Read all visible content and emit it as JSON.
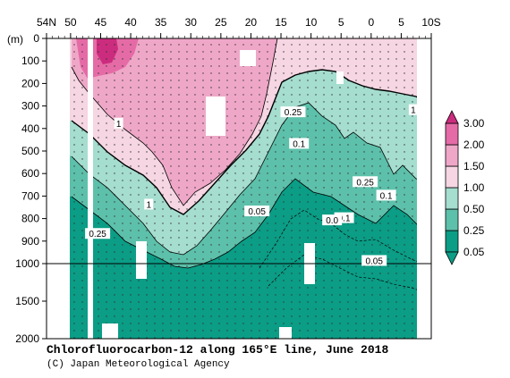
{
  "chart_data": {
    "type": "heatmap",
    "title": "Chlorofluorocarbon-12 along 165°E line, June 2018",
    "credit": "(C) Japan Meteorological Agency",
    "depth_unit": "(m)",
    "x_ticks": [
      "54N",
      "50",
      "45",
      "40",
      "35",
      "30",
      "25",
      "20",
      "15",
      "10",
      "5",
      "0",
      "5",
      "10S"
    ],
    "y_ticks_upper": [
      "0",
      "100",
      "200",
      "300",
      "400",
      "500",
      "600",
      "700",
      "800",
      "900",
      "1000"
    ],
    "y_ticks_lower": [
      "1500",
      "2000"
    ],
    "legend": {
      "levels": [
        "0.05",
        "0.25",
        "0.50",
        "1.00",
        "1.50",
        "2.00",
        "3.00"
      ],
      "colors": [
        "#0b9d86",
        "#5dc0aa",
        "#a5ddcf",
        "#f5d6e2",
        "#efa7c8",
        "#e56ba6",
        "#cc2c7e"
      ]
    },
    "contour_labels": [
      {
        "text": "1",
        "lat": 42,
        "depth": 380
      },
      {
        "text": "1",
        "lat": 37,
        "depth": 740
      },
      {
        "text": "1",
        "lat": -7,
        "depth": 320
      },
      {
        "text": "0.25",
        "lat": 13,
        "depth": 330
      },
      {
        "text": "0.25",
        "lat": 45.5,
        "depth": 870
      },
      {
        "text": "0.25",
        "lat": 1,
        "depth": 640
      },
      {
        "text": "0.1",
        "lat": 12,
        "depth": 470
      },
      {
        "text": "0.1",
        "lat": -2.5,
        "depth": 700
      },
      {
        "text": "0.1",
        "lat": 4.5,
        "depth": 800
      },
      {
        "text": "0.05",
        "lat": 19,
        "depth": 770
      },
      {
        "text": "0.05",
        "lat": -0.5,
        "depth": 990
      },
      {
        "text": "0.0",
        "lat": 6.5,
        "depth": 810
      }
    ]
  }
}
